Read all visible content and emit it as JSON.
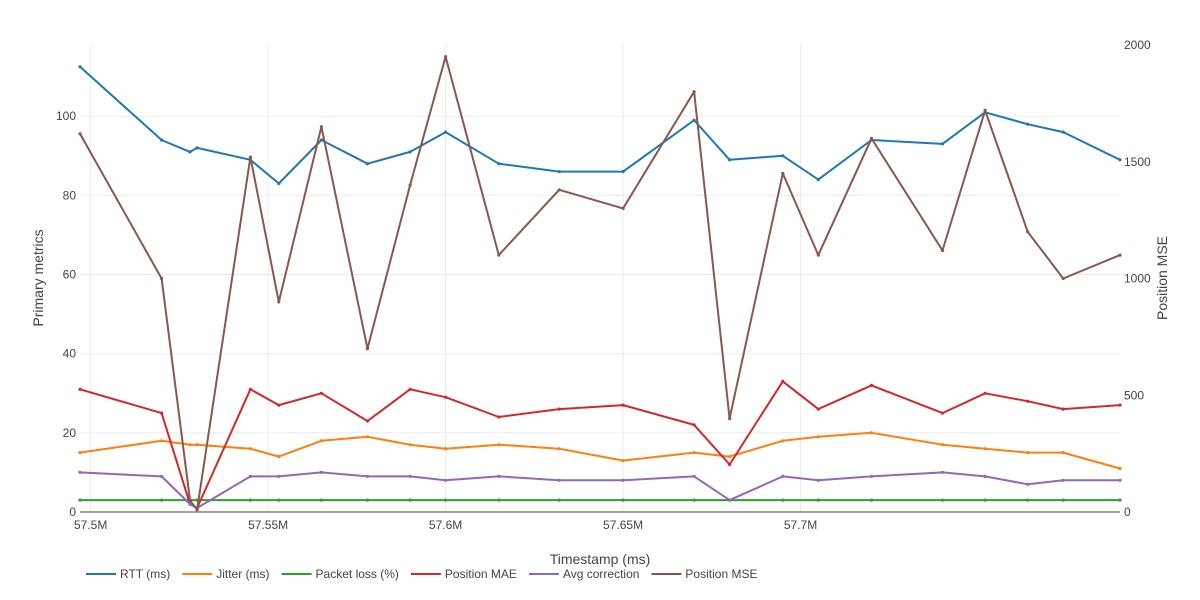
{
  "chart_data": {
    "type": "line",
    "title": "",
    "xlabel": "Timestamp (ms)",
    "ylabel": "Primary metrics",
    "y2label": "Position MSE",
    "xlim": [
      57497000,
      57790000
    ],
    "ylim": [
      0,
      118
    ],
    "y2lim": [
      0,
      2000
    ],
    "xticks": [
      57500000,
      57550000,
      57600000,
      57650000,
      57700000
    ],
    "xtick_labels": [
      "57.5M",
      "57.55M",
      "57.6M",
      "57.65M",
      "57.7M"
    ],
    "yticks": [
      0,
      20,
      40,
      60,
      80,
      100
    ],
    "y2ticks": [
      0,
      500,
      1000,
      1500,
      2000
    ],
    "grid": true,
    "legend_position": "bottom-left",
    "x": [
      57497000,
      57520000,
      57528000,
      57530000,
      57545000,
      57553000,
      57565000,
      57578000,
      57590000,
      57600000,
      57615000,
      57632000,
      57650000,
      57670000,
      57680000,
      57695000,
      57705000,
      57720000,
      57740000,
      57752000,
      57764000,
      57774000,
      57790000
    ],
    "series": [
      {
        "name": "RTT (ms)",
        "axis": "y",
        "color": "#1f77b4",
        "values": [
          112.5,
          94,
          91,
          92,
          89,
          83,
          94,
          88,
          91,
          96,
          88,
          86,
          86,
          99,
          89,
          90,
          84,
          94,
          93,
          101,
          98,
          96,
          89
        ]
      },
      {
        "name": "Jitter (ms)",
        "axis": "y",
        "color": "#ff7f0e",
        "values": [
          15,
          18,
          17,
          17,
          16,
          14,
          18,
          19,
          17,
          16,
          17,
          16,
          13,
          15,
          14,
          18,
          19,
          20,
          17,
          16,
          15,
          15,
          11
        ]
      },
      {
        "name": "Packet loss (%)",
        "axis": "y",
        "color": "#2ca02c",
        "values": [
          3,
          3,
          3,
          3,
          3,
          3,
          3,
          3,
          3,
          3,
          3,
          3,
          3,
          3,
          3,
          3,
          3,
          3,
          3,
          3,
          3,
          3,
          3
        ]
      },
      {
        "name": "Position MAE",
        "axis": "y",
        "color": "#d62728",
        "values": [
          31,
          25,
          2,
          1,
          31,
          27,
          30,
          23,
          31,
          29,
          24,
          26,
          27,
          22,
          12,
          33,
          26,
          32,
          25,
          30,
          28,
          26,
          27
        ]
      },
      {
        "name": "Avg correction",
        "axis": "y",
        "color": "#9467bd",
        "values": [
          10,
          9,
          2,
          1,
          9,
          9,
          10,
          9,
          9,
          8,
          9,
          8,
          8,
          9,
          3,
          9,
          8,
          9,
          10,
          9,
          7,
          8,
          8
        ]
      },
      {
        "name": "Position MSE",
        "axis": "y2",
        "color": "#8c564b",
        "values": [
          1620,
          1000,
          50,
          10,
          1520,
          900,
          1650,
          700,
          1400,
          1950,
          1100,
          1380,
          1300,
          1800,
          400,
          1450,
          1100,
          1600,
          1120,
          1720,
          1200,
          1000,
          1100
        ]
      }
    ]
  }
}
